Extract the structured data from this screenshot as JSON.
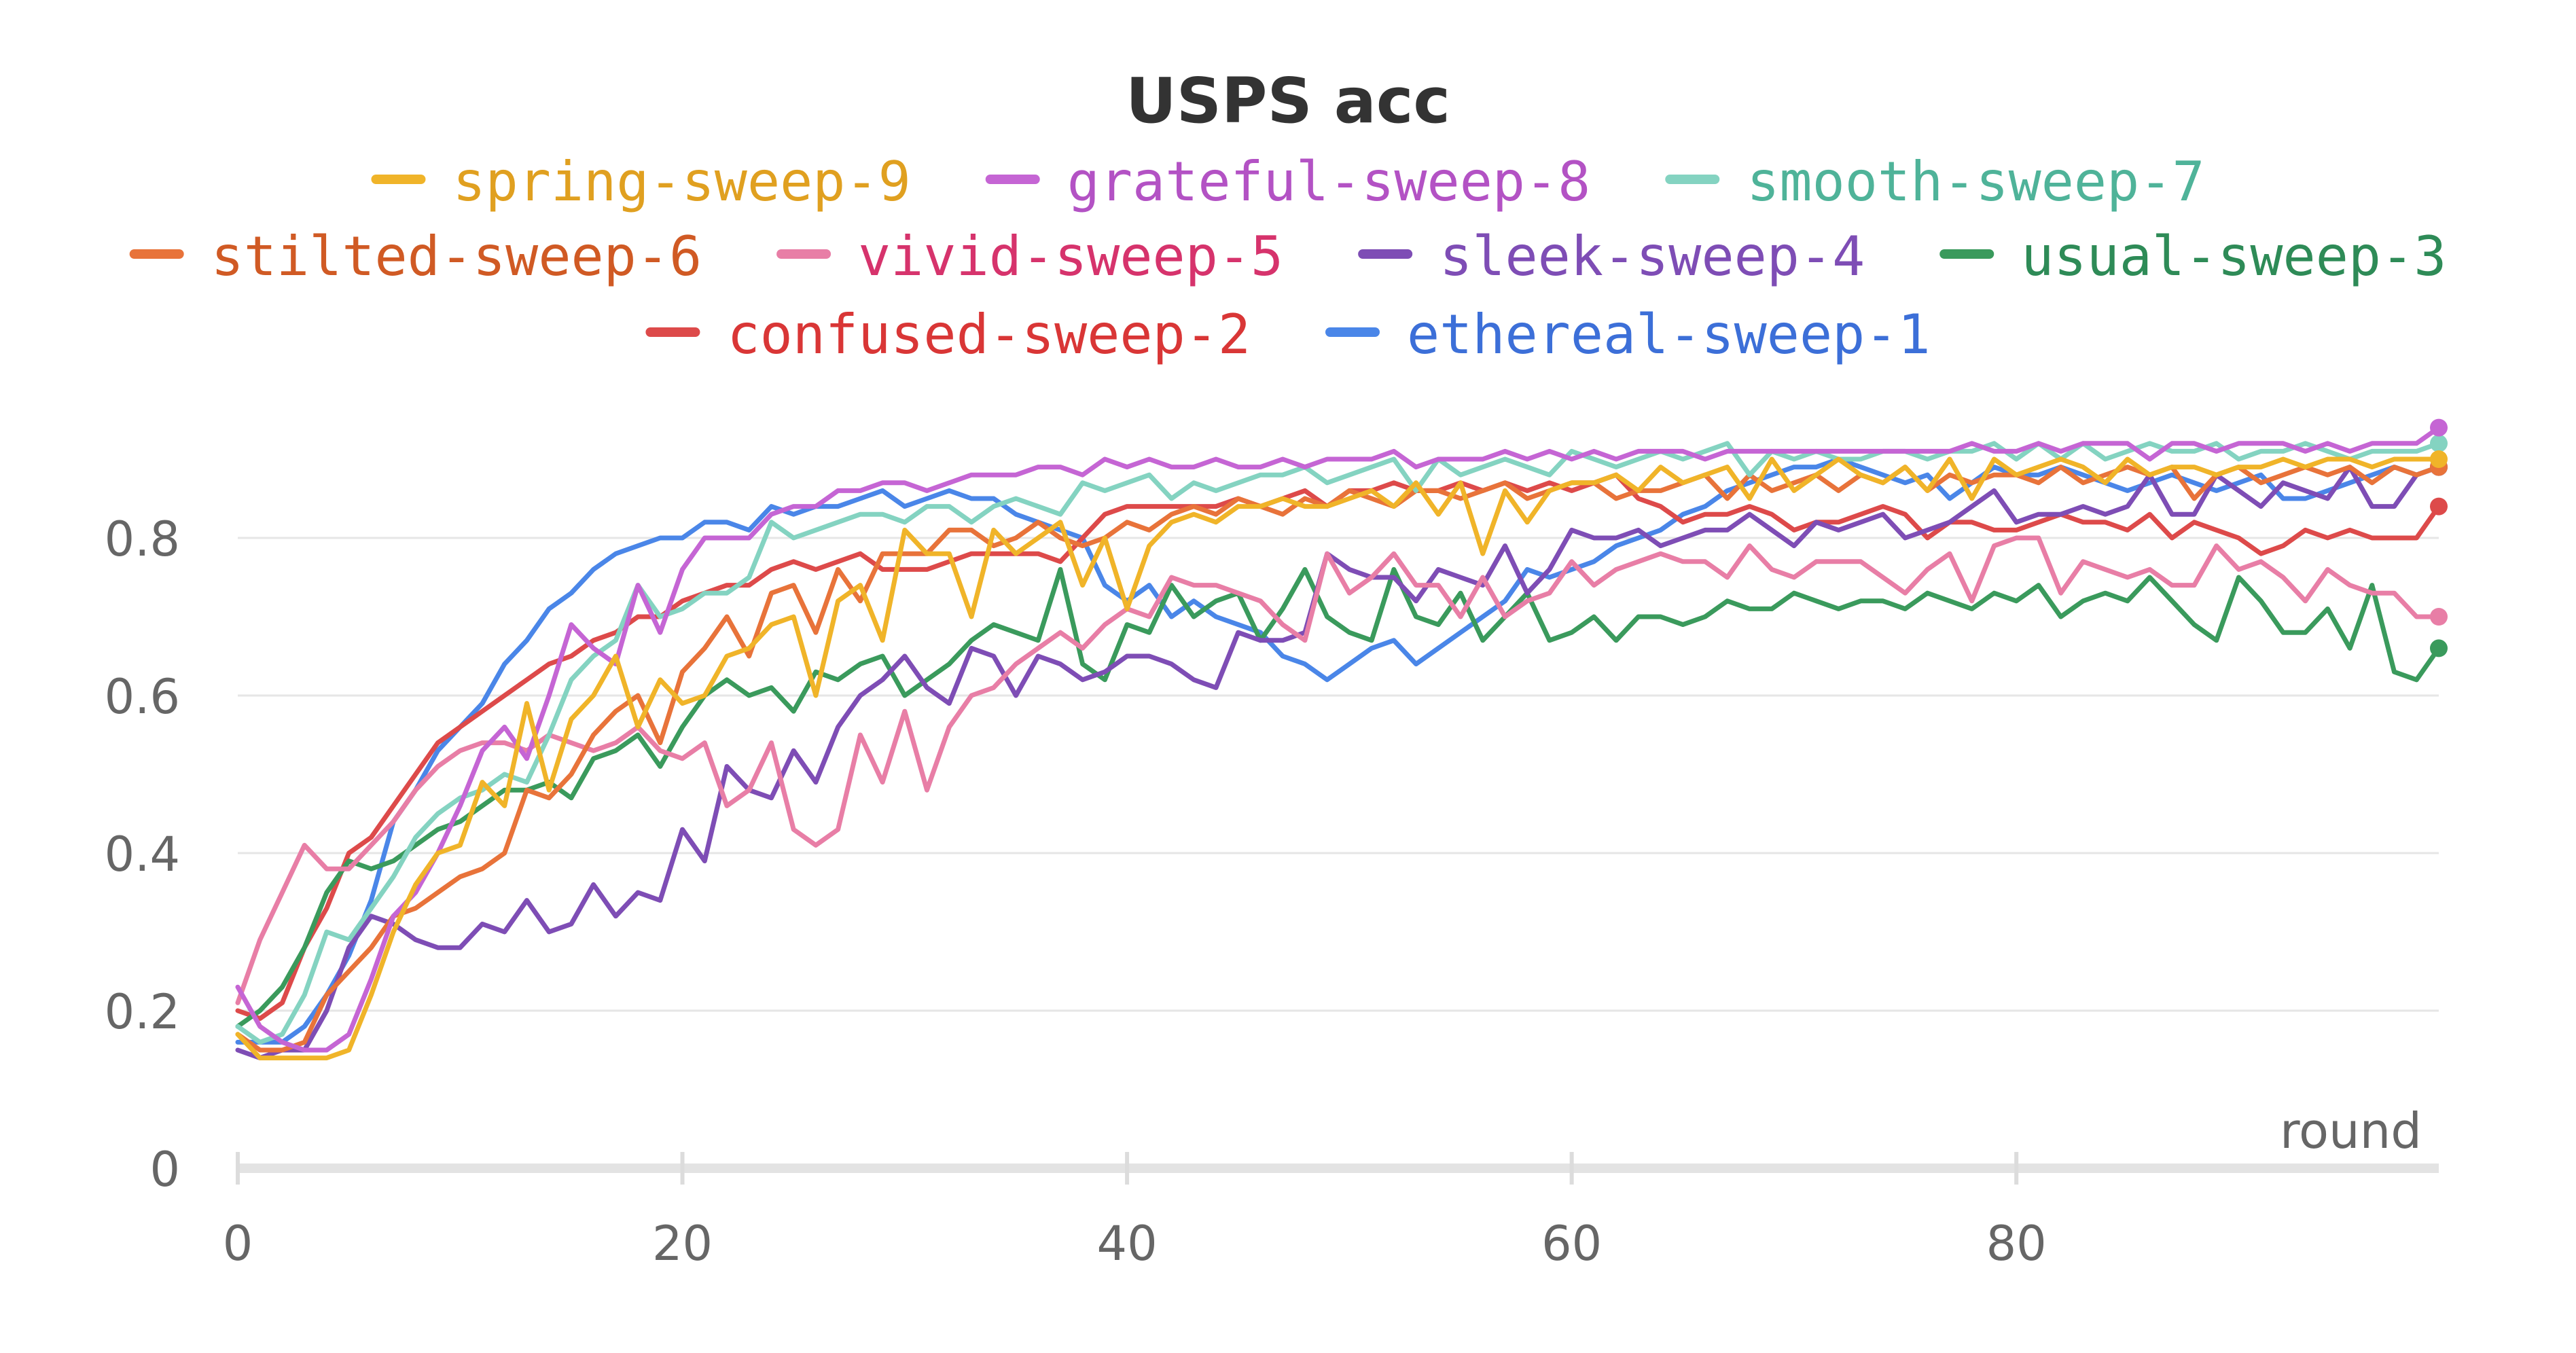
{
  "chart_data": {
    "type": "line",
    "title": "USPS acc",
    "xlabel": "round",
    "ylabel": "",
    "xlim": [
      0,
      99
    ],
    "ylim": [
      0,
      1
    ],
    "x_ticks": [
      0,
      20,
      40,
      60,
      80
    ],
    "y_ticks": [
      0,
      0.2,
      0.4,
      0.6,
      0.8
    ],
    "x_tick_labels": [
      "0",
      "20",
      "40",
      "60",
      "80"
    ],
    "y_tick_labels": [
      "0",
      "0.2",
      "0.4",
      "0.6",
      "0.8"
    ],
    "grid": "horizontal",
    "legend_position": "top",
    "x_start": 0,
    "x_step": 1,
    "series": [
      {
        "name": "spring-sweep-9",
        "color": "#f0b429",
        "label_color": "#e0a020",
        "values": [
          0.17,
          0.14,
          0.14,
          0.14,
          0.14,
          0.15,
          0.22,
          0.3,
          0.36,
          0.4,
          0.41,
          0.49,
          0.46,
          0.59,
          0.48,
          0.57,
          0.6,
          0.65,
          0.56,
          0.62,
          0.59,
          0.6,
          0.65,
          0.66,
          0.69,
          0.7,
          0.6,
          0.72,
          0.74,
          0.67,
          0.81,
          0.78,
          0.78,
          0.7,
          0.81,
          0.78,
          0.8,
          0.82,
          0.74,
          0.8,
          0.71,
          0.79,
          0.82,
          0.83,
          0.82,
          0.84,
          0.84,
          0.85,
          0.84,
          0.84,
          0.85,
          0.86,
          0.84,
          0.87,
          0.83,
          0.87,
          0.78,
          0.86,
          0.82,
          0.86,
          0.87,
          0.87,
          0.88,
          0.86,
          0.89,
          0.87,
          0.88,
          0.89,
          0.85,
          0.9,
          0.86,
          0.88,
          0.9,
          0.88,
          0.87,
          0.89,
          0.86,
          0.9,
          0.85,
          0.9,
          0.88,
          0.89,
          0.9,
          0.89,
          0.87,
          0.9,
          0.88,
          0.89,
          0.89,
          0.88,
          0.89,
          0.89,
          0.9,
          0.89,
          0.9,
          0.9,
          0.89,
          0.9,
          0.9,
          0.9
        ]
      },
      {
        "name": "grateful-sweep-8",
        "color": "#c565d4",
        "label_color": "#b352c4",
        "values": [
          0.23,
          0.18,
          0.16,
          0.15,
          0.15,
          0.17,
          0.24,
          0.32,
          0.35,
          0.4,
          0.46,
          0.53,
          0.56,
          0.52,
          0.6,
          0.69,
          0.66,
          0.64,
          0.74,
          0.68,
          0.76,
          0.8,
          0.8,
          0.8,
          0.83,
          0.84,
          0.84,
          0.86,
          0.86,
          0.87,
          0.87,
          0.86,
          0.87,
          0.88,
          0.88,
          0.88,
          0.89,
          0.89,
          0.88,
          0.9,
          0.89,
          0.9,
          0.89,
          0.89,
          0.9,
          0.89,
          0.89,
          0.9,
          0.89,
          0.9,
          0.9,
          0.9,
          0.91,
          0.89,
          0.9,
          0.9,
          0.9,
          0.91,
          0.9,
          0.91,
          0.9,
          0.91,
          0.9,
          0.91,
          0.91,
          0.91,
          0.9,
          0.91,
          0.91,
          0.91,
          0.91,
          0.91,
          0.91,
          0.91,
          0.91,
          0.91,
          0.91,
          0.91,
          0.92,
          0.91,
          0.91,
          0.92,
          0.91,
          0.92,
          0.92,
          0.92,
          0.9,
          0.92,
          0.92,
          0.91,
          0.92,
          0.92,
          0.92,
          0.91,
          0.92,
          0.91,
          0.92,
          0.92,
          0.92,
          0.94
        ]
      },
      {
        "name": "smooth-sweep-7",
        "color": "#84d3c1",
        "label_color": "#4fb399",
        "values": [
          0.18,
          0.16,
          0.17,
          0.22,
          0.3,
          0.29,
          0.33,
          0.37,
          0.42,
          0.45,
          0.47,
          0.48,
          0.5,
          0.49,
          0.55,
          0.62,
          0.65,
          0.67,
          0.74,
          0.7,
          0.71,
          0.73,
          0.73,
          0.75,
          0.82,
          0.8,
          0.81,
          0.82,
          0.83,
          0.83,
          0.82,
          0.84,
          0.84,
          0.82,
          0.84,
          0.85,
          0.84,
          0.83,
          0.87,
          0.86,
          0.87,
          0.88,
          0.85,
          0.87,
          0.86,
          0.87,
          0.88,
          0.88,
          0.89,
          0.87,
          0.88,
          0.89,
          0.9,
          0.86,
          0.9,
          0.88,
          0.89,
          0.9,
          0.89,
          0.88,
          0.91,
          0.9,
          0.89,
          0.9,
          0.91,
          0.9,
          0.91,
          0.92,
          0.88,
          0.91,
          0.9,
          0.91,
          0.9,
          0.9,
          0.91,
          0.91,
          0.9,
          0.91,
          0.91,
          0.92,
          0.9,
          0.92,
          0.9,
          0.92,
          0.9,
          0.91,
          0.92,
          0.91,
          0.91,
          0.92,
          0.9,
          0.91,
          0.91,
          0.92,
          0.91,
          0.9,
          0.91,
          0.91,
          0.91,
          0.92
        ]
      },
      {
        "name": "stilted-sweep-6",
        "color": "#e8733a",
        "label_color": "#d05a24",
        "values": [
          0.17,
          0.15,
          0.15,
          0.16,
          0.22,
          0.25,
          0.28,
          0.32,
          0.33,
          0.35,
          0.37,
          0.38,
          0.4,
          0.48,
          0.47,
          0.5,
          0.55,
          0.58,
          0.6,
          0.54,
          0.63,
          0.66,
          0.7,
          0.65,
          0.73,
          0.74,
          0.68,
          0.76,
          0.72,
          0.78,
          0.78,
          0.78,
          0.81,
          0.81,
          0.79,
          0.8,
          0.82,
          0.8,
          0.79,
          0.8,
          0.82,
          0.81,
          0.83,
          0.84,
          0.83,
          0.85,
          0.84,
          0.83,
          0.85,
          0.84,
          0.86,
          0.85,
          0.84,
          0.86,
          0.86,
          0.85,
          0.86,
          0.87,
          0.85,
          0.86,
          0.87,
          0.87,
          0.85,
          0.86,
          0.86,
          0.87,
          0.88,
          0.85,
          0.88,
          0.86,
          0.87,
          0.88,
          0.86,
          0.88,
          0.87,
          0.89,
          0.86,
          0.88,
          0.87,
          0.88,
          0.88,
          0.87,
          0.89,
          0.87,
          0.88,
          0.89,
          0.88,
          0.89,
          0.85,
          0.88,
          0.89,
          0.87,
          0.88,
          0.89,
          0.88,
          0.89,
          0.87,
          0.89,
          0.88,
          0.89
        ]
      },
      {
        "name": "vivid-sweep-5",
        "color": "#e87ea6",
        "label_color": "#d6336c",
        "values": [
          0.21,
          0.29,
          0.35,
          0.41,
          0.38,
          0.38,
          0.41,
          0.44,
          0.48,
          0.51,
          0.53,
          0.54,
          0.54,
          0.53,
          0.55,
          0.54,
          0.53,
          0.54,
          0.56,
          0.53,
          0.52,
          0.54,
          0.46,
          0.48,
          0.54,
          0.43,
          0.41,
          0.43,
          0.55,
          0.49,
          0.58,
          0.48,
          0.56,
          0.6,
          0.61,
          0.64,
          0.66,
          0.68,
          0.66,
          0.69,
          0.71,
          0.7,
          0.75,
          0.74,
          0.74,
          0.73,
          0.72,
          0.69,
          0.67,
          0.78,
          0.73,
          0.75,
          0.78,
          0.74,
          0.74,
          0.7,
          0.75,
          0.7,
          0.72,
          0.73,
          0.77,
          0.74,
          0.76,
          0.77,
          0.78,
          0.77,
          0.77,
          0.75,
          0.79,
          0.76,
          0.75,
          0.77,
          0.77,
          0.77,
          0.75,
          0.73,
          0.76,
          0.78,
          0.72,
          0.79,
          0.8,
          0.8,
          0.73,
          0.77,
          0.76,
          0.75,
          0.76,
          0.74,
          0.74,
          0.79,
          0.76,
          0.77,
          0.75,
          0.72,
          0.76,
          0.74,
          0.73,
          0.73,
          0.7,
          0.7
        ]
      },
      {
        "name": "sleek-sweep-4",
        "color": "#7e4db5",
        "label_color": "#7e4db5",
        "values": [
          0.15,
          0.14,
          0.15,
          0.15,
          0.2,
          0.28,
          0.32,
          0.31,
          0.29,
          0.28,
          0.28,
          0.31,
          0.3,
          0.34,
          0.3,
          0.31,
          0.36,
          0.32,
          0.35,
          0.34,
          0.43,
          0.39,
          0.51,
          0.48,
          0.47,
          0.53,
          0.49,
          0.56,
          0.6,
          0.62,
          0.65,
          0.61,
          0.59,
          0.66,
          0.65,
          0.6,
          0.65,
          0.64,
          0.62,
          0.63,
          0.65,
          0.65,
          0.64,
          0.62,
          0.61,
          0.68,
          0.67,
          0.67,
          0.68,
          0.78,
          0.76,
          0.75,
          0.75,
          0.72,
          0.76,
          0.75,
          0.74,
          0.79,
          0.73,
          0.76,
          0.81,
          0.8,
          0.8,
          0.81,
          0.79,
          0.8,
          0.81,
          0.81,
          0.83,
          0.81,
          0.79,
          0.82,
          0.81,
          0.82,
          0.83,
          0.8,
          0.81,
          0.82,
          0.84,
          0.86,
          0.82,
          0.83,
          0.83,
          0.84,
          0.83,
          0.84,
          0.88,
          0.83,
          0.83,
          0.88,
          0.86,
          0.84,
          0.87,
          0.86,
          0.85,
          0.89,
          0.84,
          0.84,
          0.88,
          0.89
        ]
      },
      {
        "name": "usual-sweep-3",
        "color": "#3a9a5c",
        "label_color": "#2e8b57",
        "values": [
          0.18,
          0.2,
          0.23,
          0.28,
          0.35,
          0.39,
          0.38,
          0.39,
          0.41,
          0.43,
          0.44,
          0.46,
          0.48,
          0.48,
          0.49,
          0.47,
          0.52,
          0.53,
          0.55,
          0.51,
          0.56,
          0.6,
          0.62,
          0.6,
          0.61,
          0.58,
          0.63,
          0.62,
          0.64,
          0.65,
          0.6,
          0.62,
          0.64,
          0.67,
          0.69,
          0.68,
          0.67,
          0.76,
          0.64,
          0.62,
          0.69,
          0.68,
          0.74,
          0.7,
          0.72,
          0.73,
          0.67,
          0.71,
          0.76,
          0.7,
          0.68,
          0.67,
          0.76,
          0.7,
          0.69,
          0.73,
          0.67,
          0.7,
          0.73,
          0.67,
          0.68,
          0.7,
          0.67,
          0.7,
          0.7,
          0.69,
          0.7,
          0.72,
          0.71,
          0.71,
          0.73,
          0.72,
          0.71,
          0.72,
          0.72,
          0.71,
          0.73,
          0.72,
          0.71,
          0.73,
          0.72,
          0.74,
          0.7,
          0.72,
          0.73,
          0.72,
          0.75,
          0.72,
          0.69,
          0.67,
          0.75,
          0.72,
          0.68,
          0.68,
          0.71,
          0.66,
          0.74,
          0.63,
          0.62,
          0.66
        ]
      },
      {
        "name": "confused-sweep-2",
        "color": "#dd4a4a",
        "label_color": "#d93636",
        "values": [
          0.2,
          0.19,
          0.21,
          0.28,
          0.33,
          0.4,
          0.42,
          0.46,
          0.5,
          0.54,
          0.56,
          0.58,
          0.6,
          0.62,
          0.64,
          0.65,
          0.67,
          0.68,
          0.7,
          0.7,
          0.72,
          0.73,
          0.74,
          0.74,
          0.76,
          0.77,
          0.76,
          0.77,
          0.78,
          0.76,
          0.76,
          0.76,
          0.77,
          0.78,
          0.78,
          0.78,
          0.78,
          0.77,
          0.8,
          0.83,
          0.84,
          0.84,
          0.84,
          0.84,
          0.84,
          0.85,
          0.84,
          0.85,
          0.86,
          0.84,
          0.86,
          0.86,
          0.87,
          0.86,
          0.86,
          0.87,
          0.86,
          0.87,
          0.86,
          0.87,
          0.86,
          0.87,
          0.88,
          0.85,
          0.84,
          0.82,
          0.83,
          0.83,
          0.84,
          0.83,
          0.81,
          0.82,
          0.82,
          0.83,
          0.84,
          0.83,
          0.8,
          0.82,
          0.82,
          0.81,
          0.81,
          0.82,
          0.83,
          0.82,
          0.82,
          0.81,
          0.83,
          0.8,
          0.82,
          0.81,
          0.8,
          0.78,
          0.79,
          0.81,
          0.8,
          0.81,
          0.8,
          0.8,
          0.8,
          0.84
        ]
      },
      {
        "name": "ethereal-sweep-1",
        "color": "#4a86e8",
        "label_color": "#3c6fd8",
        "values": [
          0.16,
          0.16,
          0.16,
          0.18,
          0.22,
          0.27,
          0.34,
          0.44,
          0.48,
          0.53,
          0.56,
          0.59,
          0.64,
          0.67,
          0.71,
          0.73,
          0.76,
          0.78,
          0.79,
          0.8,
          0.8,
          0.82,
          0.82,
          0.81,
          0.84,
          0.83,
          0.84,
          0.84,
          0.85,
          0.86,
          0.84,
          0.85,
          0.86,
          0.85,
          0.85,
          0.83,
          0.82,
          0.81,
          0.8,
          0.74,
          0.72,
          0.74,
          0.7,
          0.72,
          0.7,
          0.69,
          0.68,
          0.65,
          0.64,
          0.62,
          0.64,
          0.66,
          0.67,
          0.64,
          0.66,
          0.68,
          0.7,
          0.72,
          0.76,
          0.75,
          0.76,
          0.77,
          0.79,
          0.8,
          0.81,
          0.83,
          0.84,
          0.86,
          0.87,
          0.88,
          0.89,
          0.89,
          0.9,
          0.89,
          0.88,
          0.87,
          0.88,
          0.85,
          0.87,
          0.89,
          0.88,
          0.88,
          0.89,
          0.88,
          0.87,
          0.86,
          0.87,
          0.88,
          0.87,
          0.86,
          0.87,
          0.88,
          0.85,
          0.85,
          0.86,
          0.87,
          0.88,
          0.89,
          0.88,
          0.89
        ]
      }
    ]
  }
}
